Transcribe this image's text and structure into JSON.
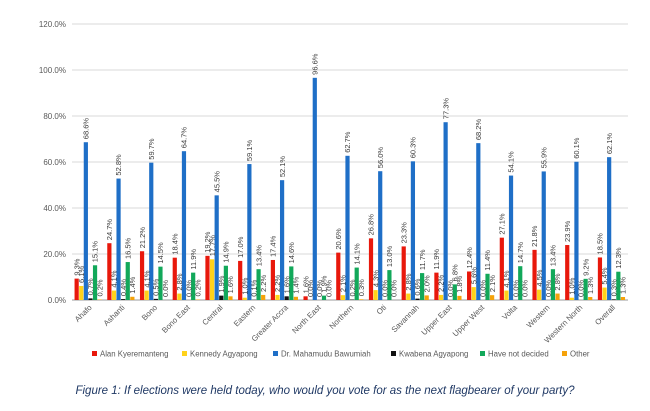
{
  "chart_data": {
    "type": "bar",
    "categories": [
      "Ahafo",
      "Ashanti",
      "Bono",
      "Bono East",
      "Central",
      "Eastern",
      "Greater Accra",
      "North East",
      "Northern",
      "Oti",
      "Savannah",
      "Upper East",
      "Upper West",
      "Volta",
      "Western",
      "Western North",
      "Overall"
    ],
    "series": [
      {
        "name": "Alan Kyeremanteng",
        "color": "#e8180c",
        "values": [
          9.3,
          24.7,
          21.2,
          18.4,
          19.2,
          17.0,
          17.4,
          1.6,
          20.6,
          26.8,
          23.3,
          11.9,
          12.4,
          27.1,
          21.8,
          23.9,
          18.5
        ]
      },
      {
        "name": "Kennedy Agyapong",
        "color": "#ffd21a",
        "values": [
          6.1,
          4.1,
          4.1,
          2.8,
          17.7,
          1.0,
          2.2,
          0.0,
          2.1,
          4.3,
          2.8,
          2.2,
          5.6,
          4.1,
          4.5,
          1.0,
          5.4
        ]
      },
      {
        "name": "Dr. Mahamudu Bawumiah",
        "color": "#1f6fc7",
        "values": [
          68.6,
          52.8,
          59.7,
          64.7,
          45.5,
          59.1,
          52.1,
          96.6,
          62.7,
          56.0,
          60.3,
          77.3,
          68.2,
          54.1,
          55.9,
          60.1,
          62.1
        ]
      },
      {
        "name": "Kwabena Agyapong",
        "color": "#111111",
        "values": [
          0.7,
          0.4,
          0.5,
          0.0,
          1.9,
          0.1,
          1.6,
          0.0,
          0.2,
          0.0,
          0.6,
          0.0,
          0.0,
          0.0,
          0.0,
          0.0,
          0.3
        ]
      },
      {
        "name": "Have not decided",
        "color": "#12a85a",
        "values": [
          15.1,
          16.5,
          14.5,
          11.9,
          14.9,
          13.4,
          14.6,
          1.9,
          14.1,
          13.0,
          11.7,
          6.8,
          11.4,
          14.7,
          13.4,
          9.2,
          12.3
        ]
      },
      {
        "name": "Other",
        "color": "#f5a20a",
        "values": [
          0.2,
          1.4,
          0.0,
          0.2,
          1.6,
          2.2,
          1.4,
          0.0,
          0.3,
          0.0,
          2.0,
          1.8,
          2.1,
          0.0,
          2.8,
          1.3,
          1.3
        ]
      }
    ],
    "labels": [
      [
        "9.3%",
        "24.7%",
        "21.2%",
        "18.4%",
        "19.2%",
        "17.0%",
        "17.4%",
        "1.6%",
        "20.6%",
        "26.8%",
        "23.3%",
        "11.9%",
        "12.4%",
        "27.1%",
        "21.8%",
        "23.9%",
        "18.5%"
      ],
      [
        "6.1%",
        "4.1%",
        "4.1%",
        "2.8%",
        "17.7%",
        "1.0%",
        "2.2%",
        "0.0%",
        "2.1%",
        "4.3%",
        "2.8%",
        "2.2%",
        "5.6%",
        "4.1%",
        "4.5%",
        "1.0%",
        "5.4%"
      ],
      [
        "68.6%",
        "52.8%",
        "59.7%",
        "64.7%",
        "45.5%",
        "59.1%",
        "52.1%",
        "96.6%",
        "62.7%",
        "56.0%",
        "60.3%",
        "77.3%",
        "68.2%",
        "54.1%",
        "55.9%",
        "60.1%",
        "62.1%"
      ],
      [
        "0.7%",
        "0.4%",
        "0.5%",
        "0.0%",
        "1.9%",
        "0.1%",
        "1.6%",
        "0.0%",
        "0.2%",
        "0.0%",
        "0.6%",
        "0.0%",
        "0.0%",
        "0.0%",
        "0.0%",
        "0.0%",
        "0.3%"
      ],
      [
        "15.1%",
        "16.5%",
        "14.5%",
        "11.9%",
        "14.9%",
        "13.4%",
        "14.6%",
        "1.9%",
        "14.1%",
        "13.0%",
        "11.7%",
        "6.8%",
        "11.4%",
        "14.7%",
        "13.4%",
        "9.2%",
        "12.3%"
      ],
      [
        "0.2%",
        "1.4%",
        "0.0%",
        "0.2%",
        "1.6%",
        "2.2%",
        "1.4%",
        "0.0%",
        "0.3%",
        "0.0%",
        "2.0%",
        "1.8%",
        "2.1%",
        "0.0%",
        "2.8%",
        "1.3%",
        "1.3%"
      ]
    ],
    "yticks": [
      "0.0%",
      "20.0%",
      "40.0%",
      "60.0%",
      "80.0%",
      "100.0%",
      "120.0%"
    ],
    "ylim": [
      0,
      120
    ],
    "grid": true,
    "legend": "bottom"
  },
  "caption": "Figure 1: If elections were held today, who would you vote for as the next flagbearer of your party?"
}
